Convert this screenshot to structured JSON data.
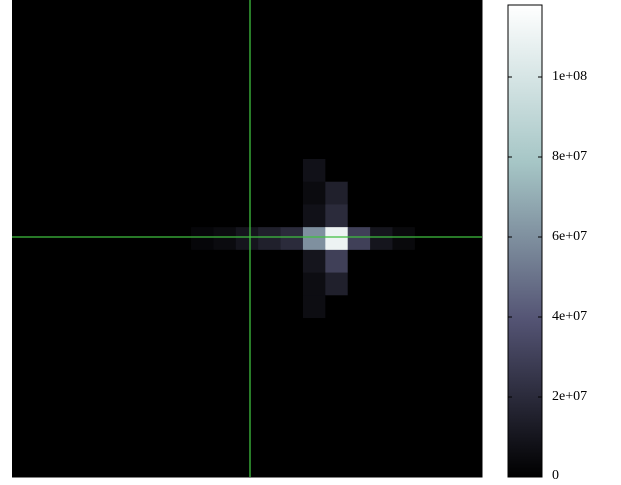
{
  "chart_data": {
    "type": "heatmap",
    "z": [
      [
        0,
        0,
        0,
        0,
        0,
        0,
        0,
        0,
        0,
        0,
        0,
        0,
        0,
        0,
        0,
        0,
        0,
        0,
        0,
        0,
        0
      ],
      [
        0,
        0,
        0,
        0,
        0,
        0,
        0,
        0,
        0,
        0,
        0,
        0,
        0,
        0,
        0,
        0,
        0,
        0,
        0,
        0,
        0
      ],
      [
        0,
        0,
        0,
        0,
        0,
        0,
        0,
        0,
        0,
        0,
        0,
        0,
        0,
        0,
        0,
        0,
        0,
        0,
        0,
        0,
        0
      ],
      [
        0,
        0,
        0,
        0,
        0,
        0,
        0,
        0,
        0,
        0,
        0,
        0,
        0,
        0,
        0,
        0,
        0,
        0,
        0,
        0,
        0
      ],
      [
        0,
        0,
        0,
        0,
        0,
        0,
        0,
        0,
        0,
        0,
        0,
        0,
        0,
        0,
        0,
        0,
        0,
        0,
        0,
        0,
        0
      ],
      [
        0,
        0,
        0,
        0,
        0,
        0,
        0,
        0,
        0,
        0,
        0,
        0,
        0,
        0,
        0,
        0,
        0,
        0,
        0,
        0,
        0
      ],
      [
        0,
        0,
        0,
        0,
        0,
        0,
        0,
        0,
        0,
        0,
        0,
        0,
        0,
        0,
        0,
        0,
        0,
        0,
        0,
        0,
        0
      ],
      [
        0,
        0,
        0,
        0,
        0,
        0,
        0,
        0,
        0,
        0,
        0,
        0,
        0,
        8000000,
        0,
        0,
        0,
        0,
        0,
        0,
        0
      ],
      [
        0,
        0,
        0,
        0,
        0,
        0,
        0,
        0,
        0,
        0,
        0,
        0,
        0,
        5000000,
        15000000,
        0,
        0,
        0,
        0,
        0,
        0
      ],
      [
        0,
        0,
        0,
        0,
        0,
        0,
        0,
        0,
        0,
        0,
        0,
        0,
        0,
        8000000,
        20000000,
        0,
        0,
        0,
        0,
        0,
        0
      ],
      [
        0,
        0,
        0,
        0,
        0,
        0,
        0,
        0,
        3000000,
        5000000,
        10000000,
        15000000,
        20000000,
        60000000,
        110000000,
        30000000,
        10000000,
        4000000,
        0,
        0,
        0
      ],
      [
        0,
        0,
        0,
        0,
        0,
        0,
        0,
        0,
        0,
        0,
        0,
        0,
        0,
        10000000,
        30000000,
        0,
        0,
        0,
        0,
        0,
        0
      ],
      [
        0,
        0,
        0,
        0,
        0,
        0,
        0,
        0,
        0,
        0,
        0,
        0,
        0,
        6000000,
        15000000,
        0,
        0,
        0,
        0,
        0,
        0
      ],
      [
        0,
        0,
        0,
        0,
        0,
        0,
        0,
        0,
        0,
        0,
        0,
        0,
        0,
        6000000,
        0,
        0,
        0,
        0,
        0,
        0,
        0
      ],
      [
        0,
        0,
        0,
        0,
        0,
        0,
        0,
        0,
        0,
        0,
        0,
        0,
        0,
        0,
        0,
        0,
        0,
        0,
        0,
        0,
        0
      ],
      [
        0,
        0,
        0,
        0,
        0,
        0,
        0,
        0,
        0,
        0,
        0,
        0,
        0,
        0,
        0,
        0,
        0,
        0,
        0,
        0,
        0
      ],
      [
        0,
        0,
        0,
        0,
        0,
        0,
        0,
        0,
        0,
        0,
        0,
        0,
        0,
        0,
        0,
        0,
        0,
        0,
        0,
        0,
        0
      ],
      [
        0,
        0,
        0,
        0,
        0,
        0,
        0,
        0,
        0,
        0,
        0,
        0,
        0,
        0,
        0,
        0,
        0,
        0,
        0,
        0,
        0
      ],
      [
        0,
        0,
        0,
        0,
        0,
        0,
        0,
        0,
        0,
        0,
        0,
        0,
        0,
        0,
        0,
        0,
        0,
        0,
        0,
        0,
        0
      ],
      [
        0,
        0,
        0,
        0,
        0,
        0,
        0,
        0,
        0,
        0,
        0,
        0,
        0,
        0,
        0,
        0,
        0,
        0,
        0,
        0,
        0
      ],
      [
        0,
        0,
        0,
        0,
        0,
        0,
        0,
        0,
        0,
        0,
        0,
        0,
        0,
        0,
        0,
        0,
        0,
        0,
        0,
        0,
        0
      ]
    ],
    "zlim": [
      0,
      118000000
    ],
    "zticks": [
      0,
      {
        "value": 20000000,
        "label": "2e+07"
      },
      {
        "value": 40000000,
        "label": "4e+07"
      },
      {
        "value": 60000000,
        "label": "6e+07"
      },
      {
        "value": 80000000,
        "label": "8e+07"
      },
      {
        "value": 100000000,
        "label": "1e+08"
      }
    ],
    "colorscale": [
      "#000000",
      "#545474",
      "#a6c6c6",
      "#ffffff"
    ]
  }
}
